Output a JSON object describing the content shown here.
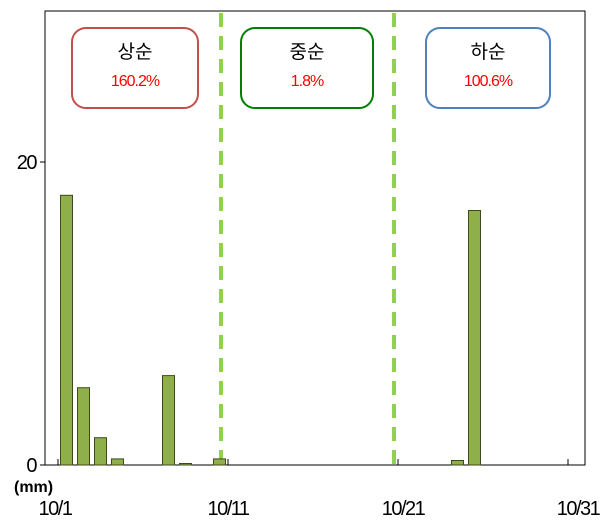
{
  "chart_data": {
    "type": "bar",
    "unit_label": "(mm)",
    "x_tick_labels": [
      "10/1",
      "10/11",
      "10/21",
      "10/31"
    ],
    "y_tick_labels": [
      "0",
      "20"
    ],
    "ylim": [
      0,
      20
    ],
    "x": [
      1,
      2,
      3,
      4,
      7,
      8,
      10,
      24,
      25
    ],
    "values": [
      17.8,
      5.1,
      1.8,
      0.4,
      5.9,
      0.1,
      0.4,
      0.3,
      16.8
    ],
    "bar_color": "#8faf4a",
    "bar_edge_color": "#3d4a1e",
    "divider_color": "#92d050",
    "grid": false,
    "periods": [
      {
        "name": "상순",
        "value": "160.2%",
        "border_color": "#c0504d"
      },
      {
        "name": "중순",
        "value": "1.8%",
        "border_color": "#008000"
      },
      {
        "name": "하순",
        "value": "100.6%",
        "border_color": "#4f81bd"
      }
    ]
  }
}
